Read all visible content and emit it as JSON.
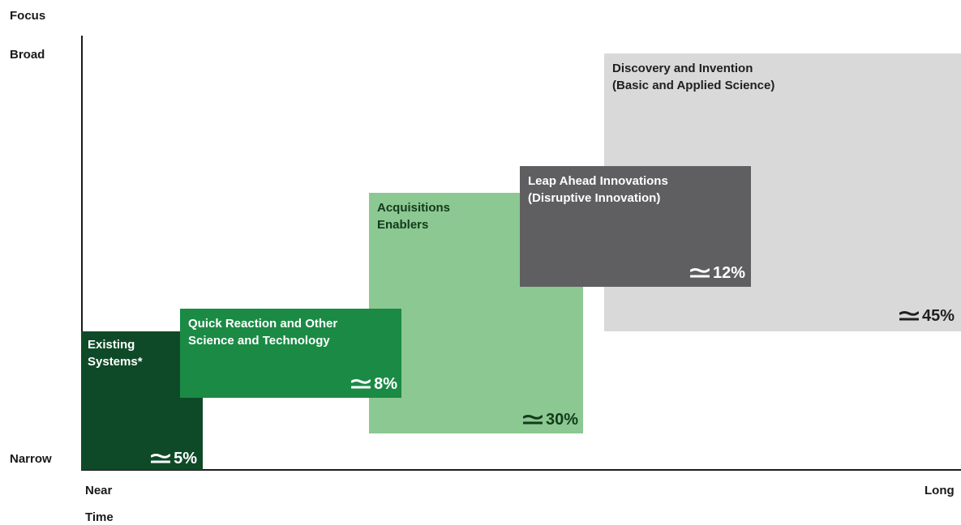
{
  "axes": {
    "y_title": "Focus",
    "y_top": "Broad",
    "y_bottom": "Narrow",
    "x_left": "Near",
    "x_right": "Long",
    "x_title": "Time"
  },
  "boxes": [
    {
      "id": "discovery",
      "title": "Discovery and Invention\n(Basic and Applied Science)",
      "percent": "45%",
      "fill": "#d9d9d9",
      "text_color": "#1f1f1f",
      "icon": "approximately-icon"
    },
    {
      "id": "leap",
      "title": "Leap Ahead Innovations\n(Disruptive Innovation)",
      "percent": "12%",
      "fill": "#5f5f61",
      "text_color": "#ffffff",
      "icon": "approximately-icon"
    },
    {
      "id": "acquisitions",
      "title": "Acquisitions\nEnablers",
      "percent": "30%",
      "fill": "#8cc891",
      "text_color": "#123a1c",
      "icon": "approximately-icon"
    },
    {
      "id": "quick",
      "title": "Quick Reaction and Other\nScience and Technology",
      "percent": "8%",
      "fill": "#1b8a45",
      "text_color": "#ffffff",
      "icon": "approximately-icon"
    },
    {
      "id": "existing",
      "title": "Existing\nSystems*",
      "percent": "5%",
      "fill": "#0e4a27",
      "text_color": "#ffffff",
      "icon": "approximately-icon"
    }
  ]
}
